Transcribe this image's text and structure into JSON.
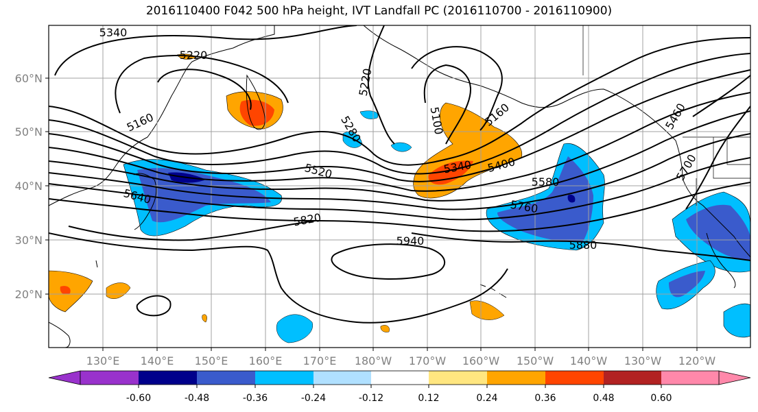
{
  "title": "2016110400 F042 500 hPa height, IVT Landfall PC (2016110700 - 2016110900)",
  "lon_ticks": [
    "130°E",
    "140°E",
    "150°E",
    "160°E",
    "170°E",
    "180°W",
    "170°W",
    "160°W",
    "150°W",
    "140°W",
    "130°W",
    "120°W"
  ],
  "lat_ticks": [
    "60°N",
    "50°N",
    "40°N",
    "30°N",
    "20°N"
  ],
  "contour_labels": [
    "5340",
    "5220",
    "5160",
    "5220",
    "5280",
    "5100",
    "5160",
    "5520",
    "5340",
    "5400",
    "5580",
    "5640",
    "5760",
    "5820",
    "5880",
    "5940",
    "5700",
    "5460"
  ],
  "colorbar": {
    "ticks": [
      "-0.60",
      "-0.48",
      "-0.36",
      "-0.24",
      "-0.12",
      "0.12",
      "0.24",
      "0.36",
      "0.48",
      "0.60"
    ],
    "colors": [
      "#9932cc",
      "#00008b",
      "#3a5bcc",
      "#00bfff",
      "#b0e0ff",
      "#ffffff",
      "#ffe680",
      "#ffa500",
      "#ff4500",
      "#b22222",
      "#ff88aa"
    ]
  },
  "colors": {
    "axis_text": "#808080",
    "grid": "#a0a0a0",
    "contour": "#000000"
  }
}
